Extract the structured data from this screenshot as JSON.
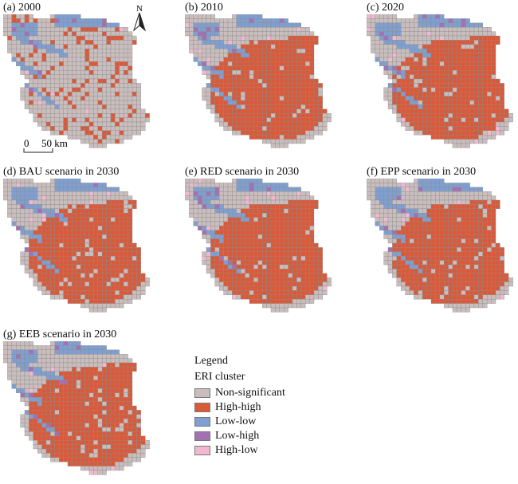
{
  "panels": [
    {
      "id": "a",
      "title": "(a) 2000",
      "variant": "scattered"
    },
    {
      "id": "b",
      "title": "(b) 2010",
      "variant": "filled"
    },
    {
      "id": "c",
      "title": "(c) 2020",
      "variant": "filled"
    },
    {
      "id": "d",
      "title": "(d) BAU scenario in 2030",
      "variant": "filled"
    },
    {
      "id": "e",
      "title": "(e) RED scenario in 2030",
      "variant": "filled"
    },
    {
      "id": "f",
      "title": "(f) EPP scenario in 2030",
      "variant": "filled"
    },
    {
      "id": "g",
      "title": "(g) EEB scenario in 2030",
      "variant": "filled"
    }
  ],
  "north_arrow": {
    "label": "N"
  },
  "scale_bar": {
    "zero": "0",
    "distance": "50 km"
  },
  "legend": {
    "title": "Legend",
    "subtitle": "ERI cluster",
    "items": [
      {
        "label": "Non-significant",
        "color": "#c9bdbd"
      },
      {
        "label": "High-high",
        "color": "#d95a3a"
      },
      {
        "label": "Low-low",
        "color": "#7f9fd0"
      },
      {
        "label": "Low-high",
        "color": "#a370b3"
      },
      {
        "label": "High-low",
        "color": "#f2b8d2"
      }
    ]
  }
}
